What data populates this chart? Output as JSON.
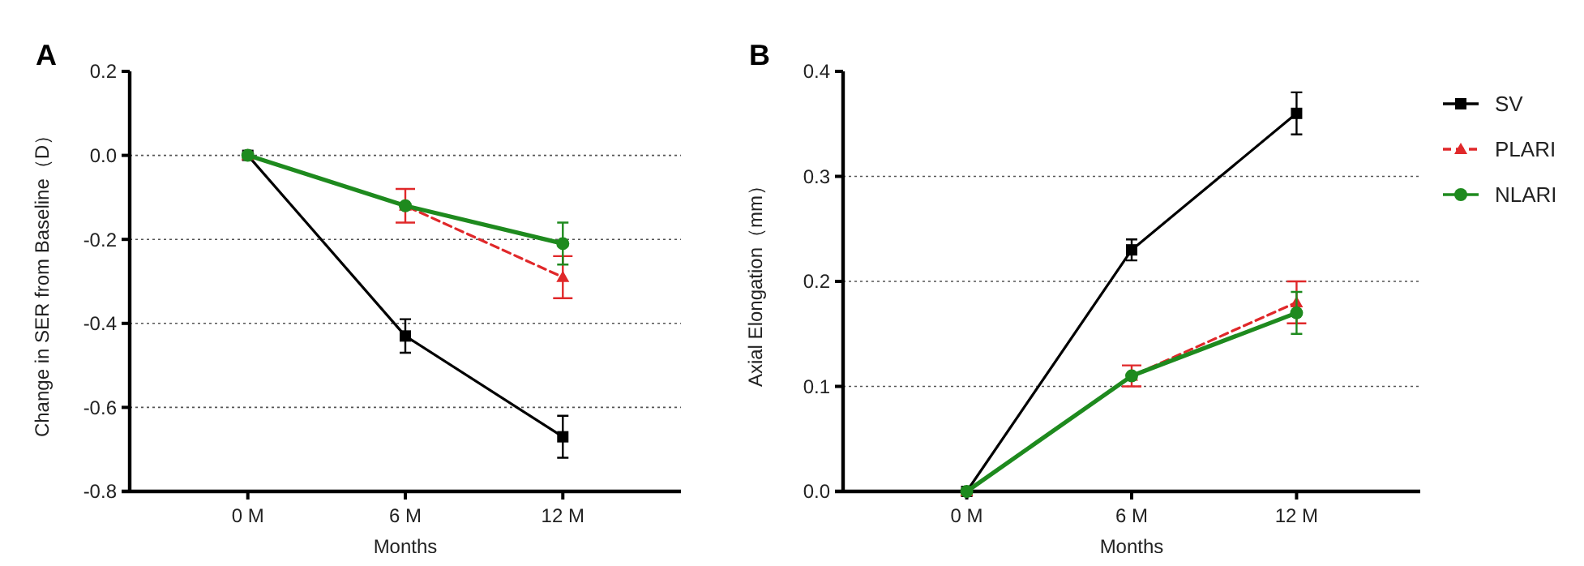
{
  "chart_data": [
    {
      "type": "line",
      "title": "A",
      "xlabel": "Months",
      "ylabel": "Change in SER from Baseline（D）",
      "categories": [
        "0 M",
        "6 M",
        "12 M"
      ],
      "series": [
        {
          "color": "#000000",
          "values": [
            0,
            -0.43,
            -0.67
          ],
          "errors": [
            null,
            0.04,
            0.05
          ],
          "marker": "square",
          "line_style": "solid"
        },
        {
          "color": "#e0282a",
          "values": [
            0,
            -0.12,
            -0.29
          ],
          "errors": [
            null,
            0.04,
            0.05
          ],
          "marker": "triangle",
          "line_style": "dashed"
        },
        {
          "color": "#1e8a1e",
          "values": [
            0,
            -0.12,
            -0.21
          ],
          "errors": [
            null,
            null,
            0.05
          ],
          "marker": "circle",
          "line_style": "solid"
        }
      ],
      "ylim": [
        -0.8,
        0.2
      ],
      "yticks": [
        {
          "value": -0.8,
          "label": "-0.8"
        },
        {
          "value": -0.6,
          "label": "-0.6"
        },
        {
          "value": -0.4,
          "label": "-0.4"
        },
        {
          "value": -0.2,
          "label": "-0.2"
        },
        {
          "value": 0,
          "label": "0.0"
        },
        {
          "value": 0.2,
          "label": "0.2"
        }
      ],
      "grid": "y",
      "legend": false
    },
    {
      "type": "line",
      "title": "B",
      "xlabel": "Months",
      "ylabel": "Axial Elongation（mm）",
      "categories": [
        "0 M",
        "6 M",
        "12 M"
      ],
      "series": [
        {
          "name": "SV",
          "color": "#000000",
          "values": [
            0,
            0.23,
            0.36
          ],
          "errors": [
            null,
            0.01,
            0.02
          ],
          "marker": "square",
          "line_style": "solid"
        },
        {
          "name": "PLARI",
          "color": "#e0282a",
          "values": [
            0,
            0.11,
            0.18
          ],
          "errors": [
            null,
            0.01,
            0.02
          ],
          "marker": "triangle",
          "line_style": "dashed"
        },
        {
          "name": "NLARI",
          "color": "#1e8a1e",
          "values": [
            0,
            0.11,
            0.17
          ],
          "errors": [
            null,
            null,
            0.02
          ],
          "marker": "circle",
          "line_style": "solid"
        }
      ],
      "ylim": [
        0,
        0.4
      ],
      "yticks": [
        {
          "value": 0,
          "label": "0.0"
        },
        {
          "value": 0.1,
          "label": "0.1"
        },
        {
          "value": 0.2,
          "label": "0.2"
        },
        {
          "value": 0.3,
          "label": "0.3"
        },
        {
          "value": 0.4,
          "label": "0.4"
        }
      ],
      "grid": "y",
      "legend": "right"
    }
  ]
}
